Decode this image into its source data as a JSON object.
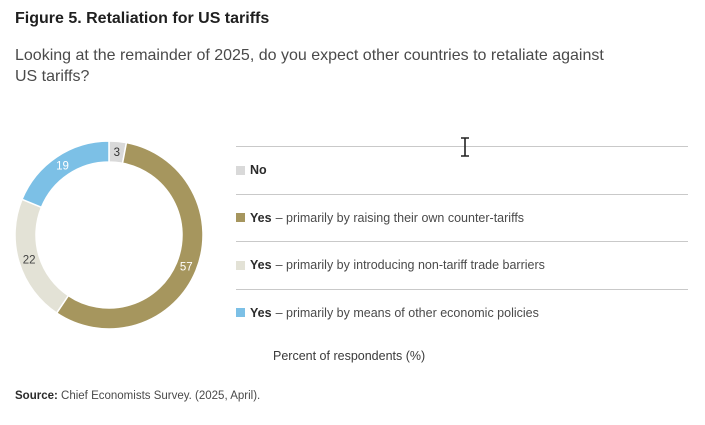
{
  "figure": {
    "title": "Figure 5. Retaliation for US tariffs",
    "subtitle": "Looking at the remainder of 2025, do you expect other countries to retaliate against US tariffs?",
    "axis_note": "Percent of respondents (%)",
    "source_label": "Source:",
    "source_text": "Chief Economists Survey. (2025, April)."
  },
  "chart_data": {
    "type": "pie",
    "style": "donut",
    "unit": "Percent of respondents (%)",
    "slices": [
      {
        "label": "No",
        "label_bold": "No",
        "description": "",
        "value": 3,
        "color": "#d9d9d9",
        "text_color": "#333333"
      },
      {
        "label": "Yes – primarily by raising their own counter-tariffs",
        "label_bold": "Yes",
        "description": "– primarily by raising their own counter-tariffs",
        "value": 57,
        "color": "#a6965e",
        "text_color": "#ffffff"
      },
      {
        "label": "Yes – primarily by introducing non-tariff trade barriers",
        "label_bold": "Yes",
        "description": "– primarily by introducing non-tariff trade barriers",
        "value": 22,
        "color": "#e3e2d6",
        "text_color": "#444444"
      },
      {
        "label": "Yes – primarily by means of other economic policies",
        "label_bold": "Yes",
        "description": "– primarily by means of other economic policies",
        "value": 19,
        "color": "#7cc0e6",
        "text_color": "#ffffff"
      }
    ]
  }
}
